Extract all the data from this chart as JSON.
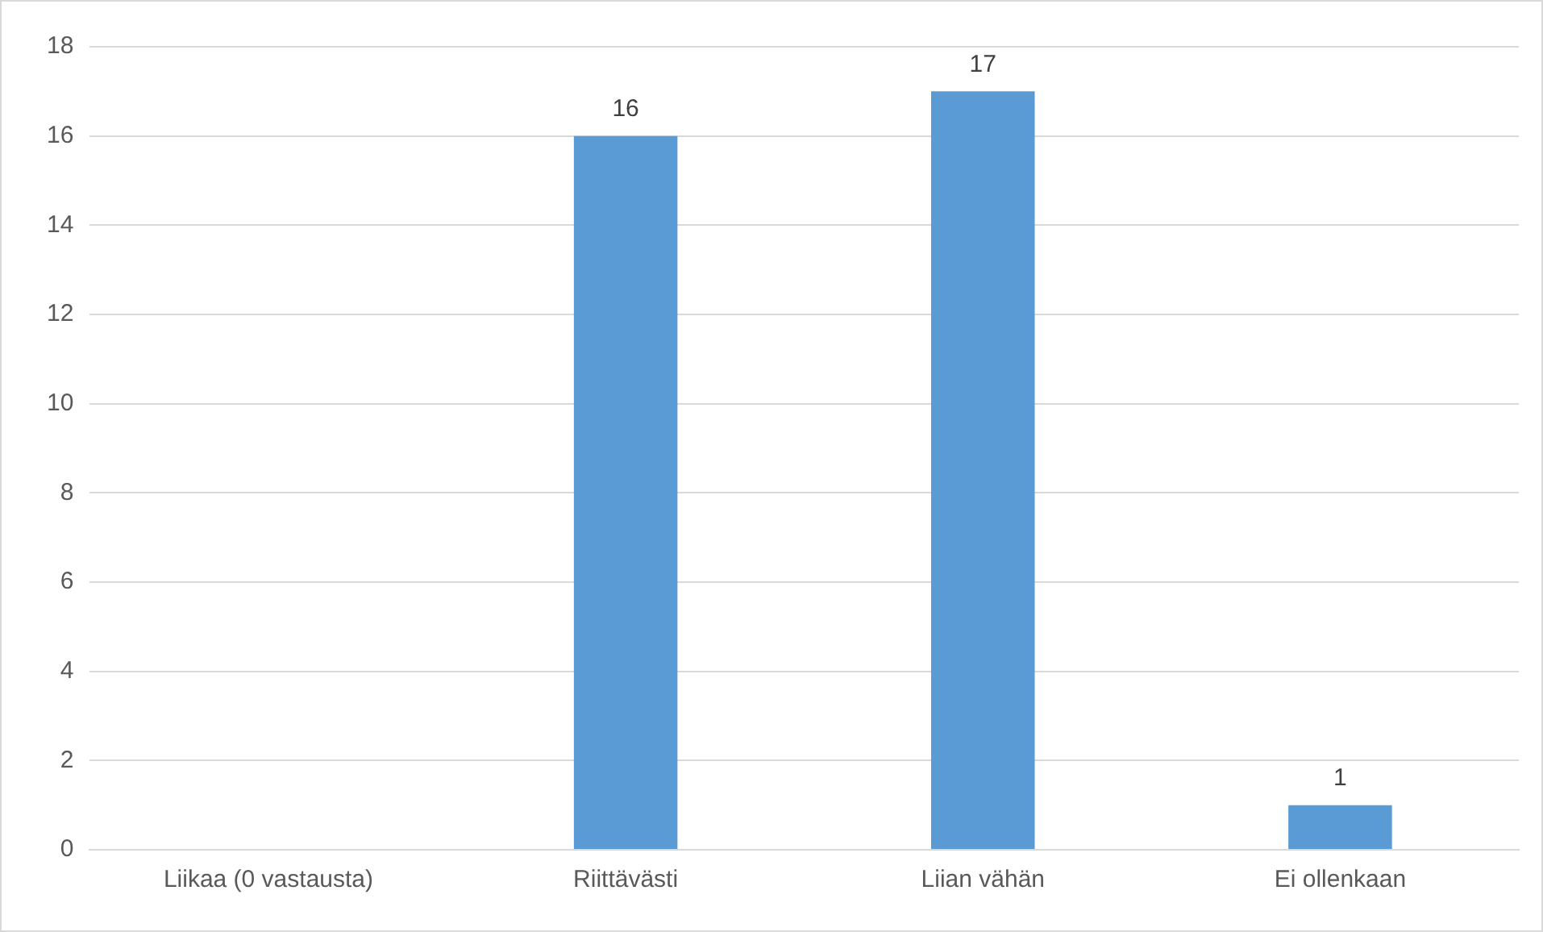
{
  "chart_data": {
    "type": "bar",
    "categories": [
      "Liikaa (0 vastausta)",
      "Riittävästi",
      "Liian vähän",
      "Ei ollenkaan"
    ],
    "values": [
      0,
      16,
      17,
      1
    ],
    "color": "#5b9bd5",
    "value_labels": [
      null,
      "16",
      "17",
      "1"
    ],
    "ylim": [
      0,
      18
    ],
    "yticks": [
      0,
      2,
      4,
      6,
      8,
      10,
      12,
      14,
      16,
      18
    ],
    "grid": "y",
    "legend": false
  }
}
